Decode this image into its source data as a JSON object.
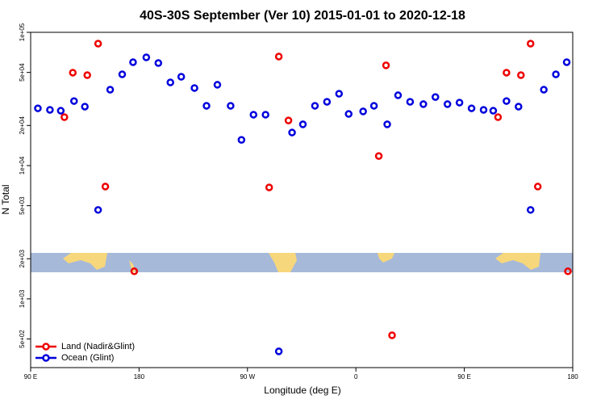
{
  "chart_data": {
    "type": "scatter",
    "title": "40S-30S September (Ver 10)   2015-01-01 to 2020-12-18",
    "x_label": "Longitude (deg E)",
    "y_label": "N Total",
    "log_y": true,
    "legend": "bottom-left",
    "xlim": [
      90,
      540
    ],
    "xticks": [
      {
        "value": 90,
        "label": "90 E"
      },
      {
        "value": 180,
        "label": "180"
      },
      {
        "value": 270,
        "label": "90 W"
      },
      {
        "value": 360,
        "label": "0"
      },
      {
        "value": 450,
        "label": "90 E"
      },
      {
        "value": 540,
        "label": "180"
      }
    ],
    "ylim": [
      305,
      100000
    ],
    "yticks": [
      {
        "value": 100000,
        "label": "1e+05"
      },
      {
        "value": 50000,
        "label": "5e+04"
      },
      {
        "value": 20000,
        "label": "2e+04"
      },
      {
        "value": 10000,
        "label": "1e+04"
      },
      {
        "value": 5000,
        "label": "5e+03"
      },
      {
        "value": 2000,
        "label": "2e+03"
      },
      {
        "value": 1000,
        "label": "1e+03"
      },
      {
        "value": 500,
        "label": "5e+02"
      }
    ],
    "series": [
      {
        "name": "Land (Nadir&Glint)",
        "color": "#ee0000",
        "x": [
          118,
          125,
          137,
          146,
          152,
          176,
          288,
          296,
          304,
          379,
          385,
          390,
          478,
          485,
          497,
          505,
          511,
          536
        ],
        "values": [
          23100,
          49800,
          47700,
          82200,
          6960,
          1610,
          6860,
          65800,
          21800,
          11800,
          56500,
          533,
          23100,
          49800,
          47700,
          82200,
          6960,
          1610
        ]
      },
      {
        "name": "Ocean (Glint)",
        "color": "#0000dd",
        "x": [
          96,
          106,
          115,
          126,
          135,
          146,
          156,
          166,
          175,
          186,
          196,
          206,
          215,
          226,
          236,
          245,
          256,
          265,
          275,
          285,
          296,
          307,
          316,
          326,
          336,
          346,
          354,
          366,
          375,
          386,
          395,
          405,
          416,
          426,
          436,
          446,
          456,
          466,
          474,
          485,
          495,
          505,
          516,
          526,
          535
        ],
        "values": [
          26900,
          26200,
          25800,
          30500,
          27700,
          4650,
          37100,
          48400,
          59700,
          64900,
          58800,
          42100,
          46400,
          38200,
          28100,
          40400,
          28100,
          15600,
          24100,
          24100,
          404,
          17700,
          20400,
          28100,
          30100,
          34600,
          24400,
          25500,
          28100,
          20400,
          33700,
          30100,
          28900,
          32700,
          28900,
          29700,
          26900,
          26200,
          25800,
          30500,
          27700,
          4650,
          37100,
          48400,
          59700
        ]
      }
    ]
  }
}
